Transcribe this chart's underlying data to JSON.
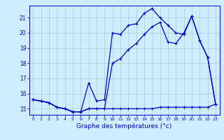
{
  "xlabel": "Graphe des températures (°c)",
  "xlim": [
    -0.5,
    23.5
  ],
  "ylim": [
    14.6,
    21.8
  ],
  "yticks": [
    15,
    16,
    17,
    18,
    19,
    20,
    21
  ],
  "xticks": [
    0,
    1,
    2,
    3,
    4,
    5,
    6,
    7,
    8,
    9,
    10,
    11,
    12,
    13,
    14,
    15,
    16,
    17,
    18,
    19,
    20,
    21,
    22,
    23
  ],
  "bg_color": "#cceeff",
  "grid_color": "#aacccc",
  "line_color": "#0000cc",
  "line1_x": [
    0,
    1,
    2,
    3,
    4,
    5,
    6,
    7,
    8,
    9,
    10,
    11,
    12,
    13,
    14,
    15,
    16,
    17,
    18,
    19,
    20,
    21,
    22,
    23
  ],
  "line1_y": [
    15.6,
    15.5,
    15.4,
    15.1,
    15.0,
    14.8,
    14.8,
    16.7,
    15.5,
    15.6,
    20.0,
    19.9,
    20.5,
    20.6,
    21.3,
    21.6,
    21.0,
    20.5,
    20.0,
    19.9,
    21.1,
    19.5,
    18.4,
    15.3
  ],
  "line2_x": [
    0,
    1,
    2,
    3,
    4,
    5,
    6,
    7,
    8,
    9,
    10,
    11,
    12,
    13,
    14,
    15,
    16,
    17,
    18,
    19,
    20,
    21,
    22,
    23
  ],
  "line2_y": [
    15.6,
    15.5,
    15.4,
    15.1,
    15.0,
    14.8,
    14.8,
    15.0,
    15.0,
    15.0,
    15.0,
    15.0,
    15.0,
    15.0,
    15.0,
    15.0,
    15.1,
    15.1,
    15.1,
    15.1,
    15.1,
    15.1,
    15.1,
    15.3
  ],
  "line3_x": [
    0,
    1,
    2,
    3,
    4,
    5,
    6,
    7,
    8,
    9,
    10,
    11,
    12,
    13,
    14,
    15,
    16,
    17,
    18,
    19,
    20,
    21,
    22,
    23
  ],
  "line3_y": [
    15.6,
    15.5,
    15.4,
    15.1,
    15.0,
    14.8,
    14.8,
    15.0,
    15.0,
    15.0,
    18.0,
    18.3,
    18.9,
    19.3,
    19.9,
    20.4,
    20.7,
    19.4,
    19.3,
    20.0,
    21.1,
    19.5,
    18.4,
    15.3
  ],
  "marker": "+",
  "markersize": 3,
  "linewidth": 0.9
}
